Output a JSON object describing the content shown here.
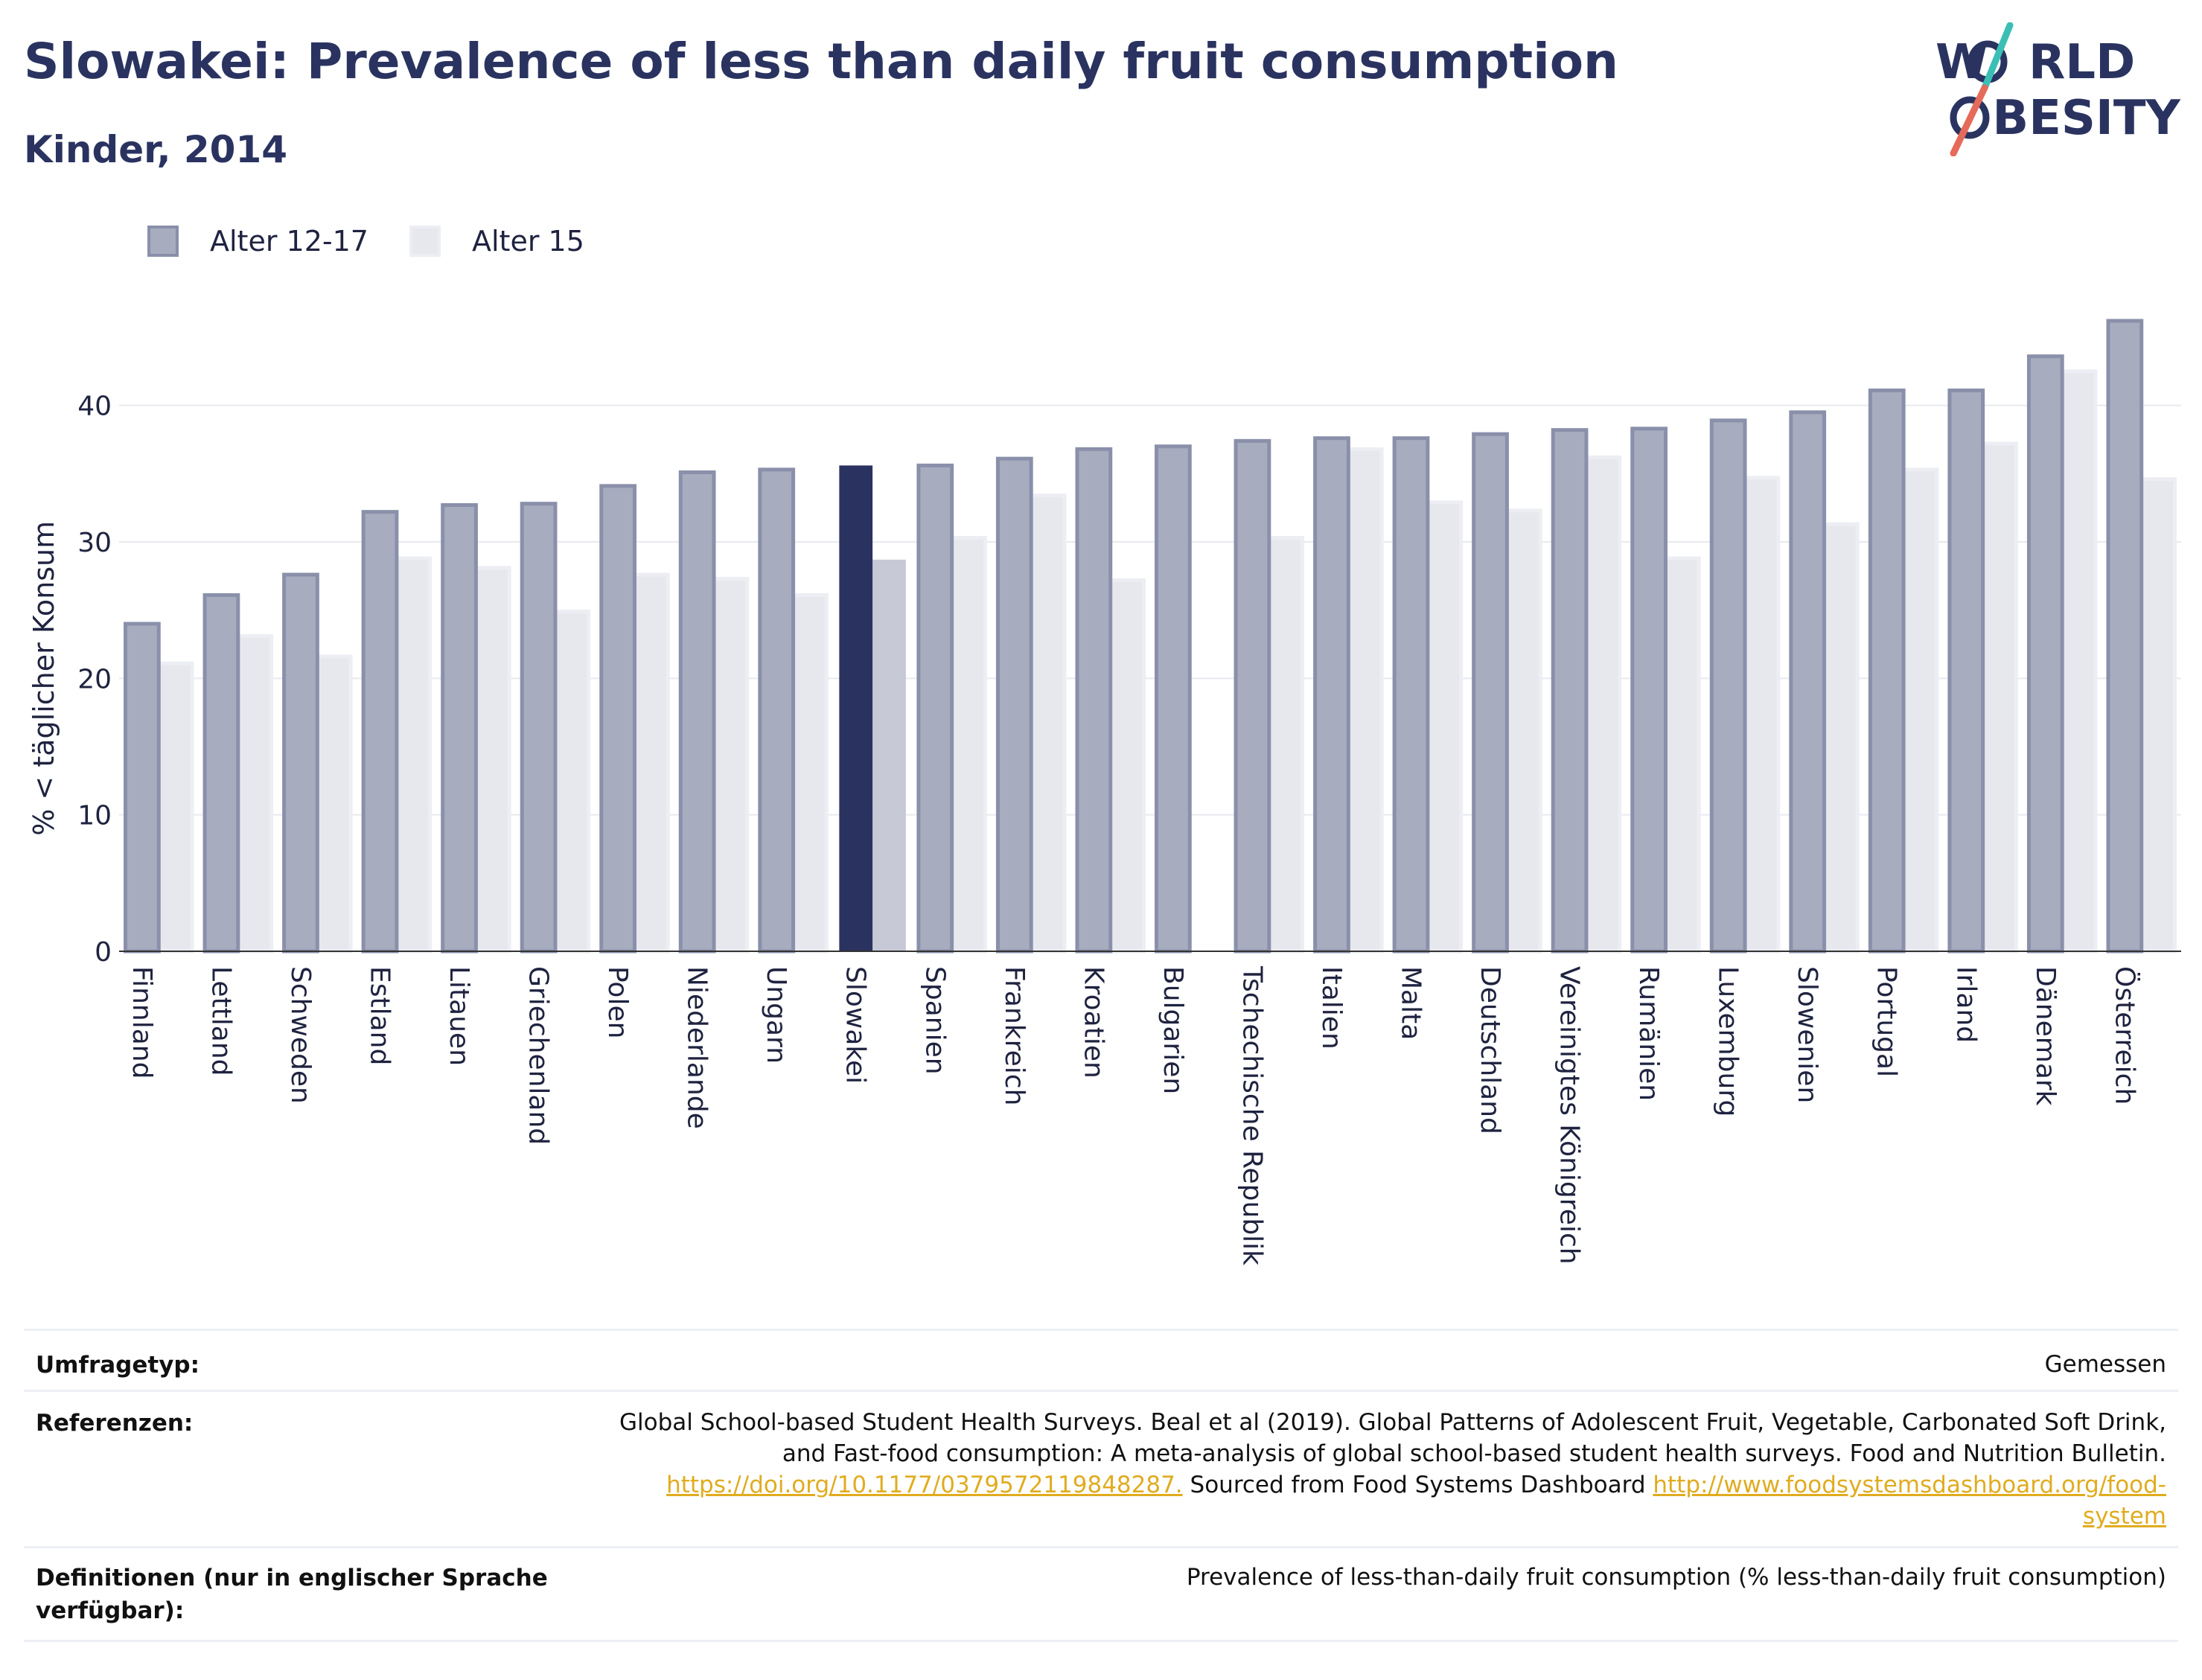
{
  "header": {
    "title": "Slowakei: Prevalence of less than daily fruit consumption",
    "subtitle": "Kinder, 2014"
  },
  "logo": {
    "line1": "W RLD",
    "line2": "BESITY",
    "colors": {
      "text": "#2a3360",
      "slash_top": "#3bbfb4",
      "slash_bottom": "#e66a5a"
    }
  },
  "legend": {
    "items": [
      {
        "label": "Alter 12-17",
        "color": "#a7acbf",
        "border": "#8a90aa"
      },
      {
        "label": "Alter 15",
        "color": "#e6e8ee",
        "border": "#eceef3"
      }
    ]
  },
  "chart_data": {
    "type": "bar",
    "title": "Slowakei: Prevalence of less than daily fruit consumption",
    "subtitle": "Kinder, 2014",
    "ylabel": "% < täglicher Konsum",
    "xlabel": "",
    "ylim": [
      0,
      48
    ],
    "yticks": [
      0,
      10,
      20,
      30,
      40
    ],
    "grid": true,
    "legend_position": "top-left",
    "highlight_category": "Slowakei",
    "highlight_colors": {
      "Alter 12-17": "#2a3360",
      "Alter 15": "#c7c9d6"
    },
    "categories": [
      "Finnland",
      "Lettland",
      "Schweden",
      "Estland",
      "Litauen",
      "Griechenland",
      "Polen",
      "Niederlande",
      "Ungarn",
      "Slowakei",
      "Spanien",
      "Frankreich",
      "Kroatien",
      "Bulgarien",
      "Tschechische Republik",
      "Italien",
      "Malta",
      "Deutschland",
      "Vereinigtes Königreich",
      "Rumänien",
      "Luxemburg",
      "Slowenien",
      "Portugal",
      "Irland",
      "Dänemark",
      "Österreich"
    ],
    "series": [
      {
        "name": "Alter 12-17",
        "values": [
          24.0,
          26.1,
          27.6,
          32.2,
          32.7,
          32.8,
          34.1,
          35.1,
          35.3,
          35.6,
          35.6,
          36.1,
          36.8,
          37.0,
          37.4,
          37.6,
          37.6,
          37.9,
          38.2,
          38.3,
          38.9,
          39.5,
          41.1,
          41.1,
          43.6,
          46.2
        ]
      },
      {
        "name": "Alter 15",
        "values": [
          21.1,
          23.1,
          21.6,
          28.8,
          28.1,
          24.9,
          27.6,
          27.3,
          26.1,
          28.7,
          30.3,
          33.4,
          27.2,
          null,
          30.3,
          36.8,
          32.9,
          32.3,
          36.2,
          28.8,
          34.7,
          31.3,
          35.3,
          37.2,
          42.5,
          34.6
        ]
      }
    ]
  },
  "meta": {
    "survey_type": {
      "label": "Umfragetyp:",
      "value": "Gemessen"
    },
    "references": {
      "label": "Referenzen:",
      "line1": "Global School-based Student Health Surveys. Beal et al (2019). Global Patterns of Adolescent Fruit, Vegetable, Carbonated Soft Drink,",
      "line2": "and Fast-food consumption: A meta-analysis of global school-based student health surveys. Food and Nutrition Bulletin.",
      "link1": "https://doi.org/10.1177/0379572119848287.",
      "mid": " Sourced from Food Systems Dashboard ",
      "link2a": "http://www.foodsystemsdashboard.org/food-",
      "link2b": "system"
    },
    "definitions": {
      "label_line1": "Definitionen (nur in englischer Sprache",
      "label_line2": "verfügbar):",
      "value": "Prevalence of less-than-daily fruit consumption (% less-than-daily fruit consumption)"
    }
  }
}
